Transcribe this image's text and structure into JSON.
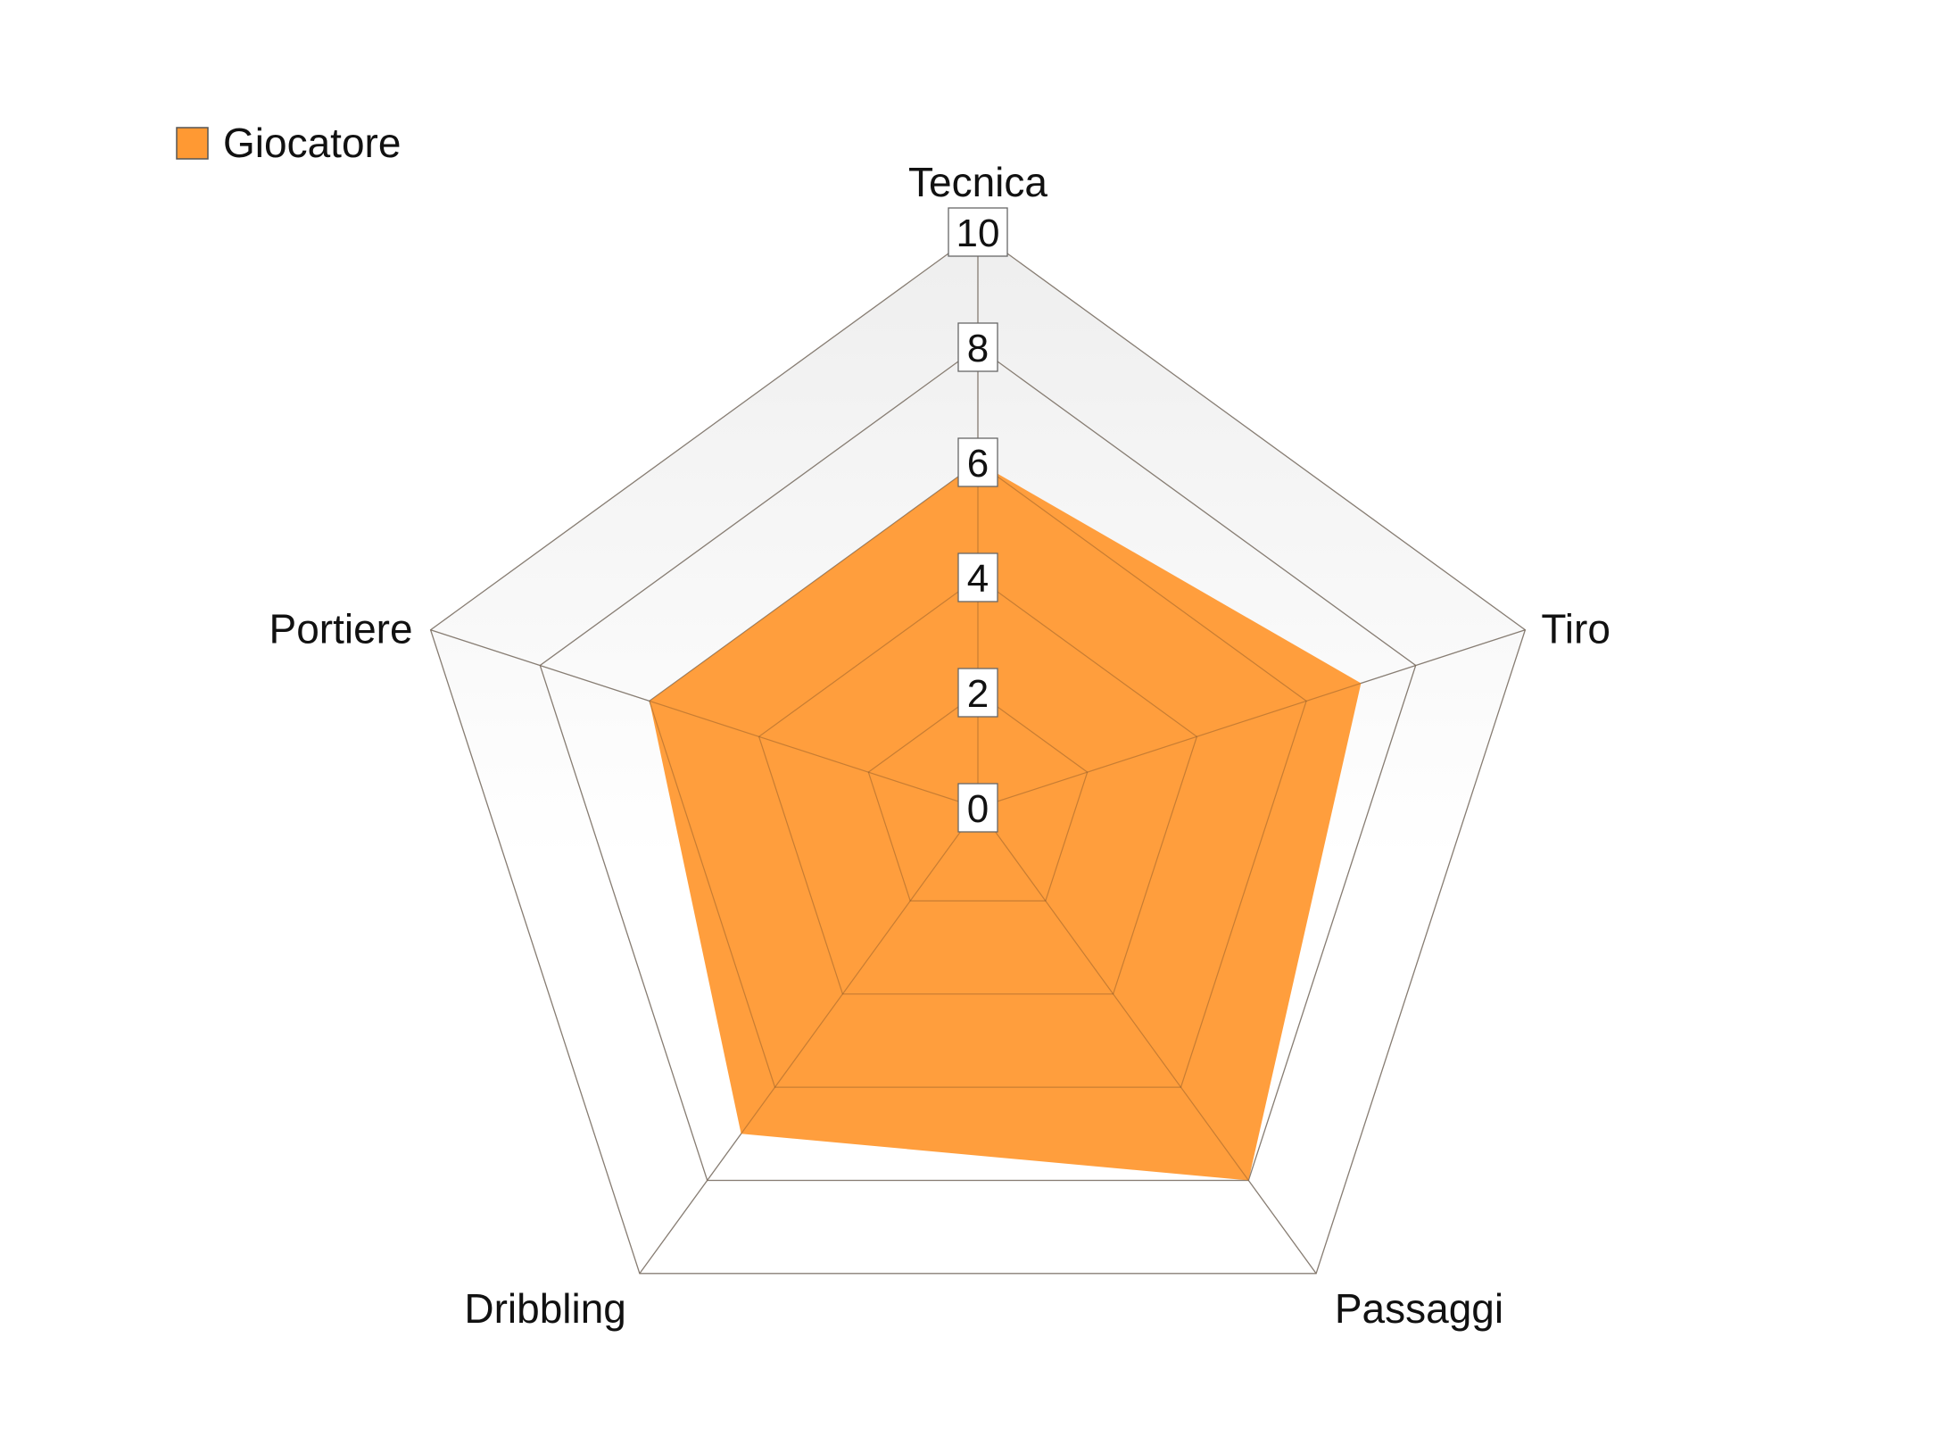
{
  "chart_data": {
    "type": "radar",
    "title": "",
    "axes": [
      "Tecnica",
      "Tiro",
      "Passaggi",
      "Dribbling",
      "Portiere"
    ],
    "series": [
      {
        "name": "Giocatore",
        "values": [
          6,
          7,
          8,
          7,
          6
        ],
        "color": "#FF9933"
      }
    ],
    "rlim": [
      0,
      10
    ],
    "ticks": [
      0,
      2,
      4,
      6,
      8,
      10
    ],
    "tick_labels": [
      "0",
      "2",
      "4",
      "6",
      "8",
      "10"
    ],
    "grid": true,
    "legend_position": "top-left",
    "background_gradient": [
      "#EEEEEE",
      "#FFFFFF"
    ],
    "grid_color": "#999999"
  }
}
